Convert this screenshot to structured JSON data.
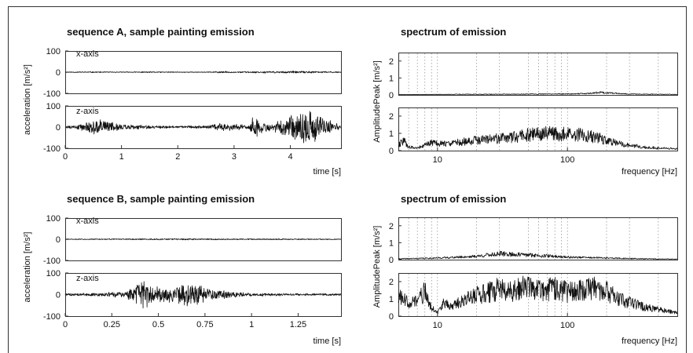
{
  "chart_data": [
    {
      "type": "line",
      "panel": "sequence-A-time",
      "title": "sequence A, sample painting emission",
      "xlabel": "time [s]",
      "ylabel": "acceleration [m/s²]",
      "xlim": [
        0,
        4.9
      ],
      "x_ticks": [
        0,
        1,
        2,
        3,
        4
      ],
      "x_tick_labels": [
        "0",
        "1",
        "2",
        "3",
        "4"
      ],
      "series": [
        {
          "name": "x-axis",
          "ylim": [
            -100,
            100
          ],
          "y_ticks": [
            100,
            0,
            -100
          ],
          "y_tick_labels": [
            "100",
            "0",
            "-100"
          ],
          "envelope": [
            [
              0,
              2
            ],
            [
              0.4,
              3
            ],
            [
              1.0,
              2
            ],
            [
              1.5,
              3
            ],
            [
              2.0,
              2
            ],
            [
              2.5,
              2
            ],
            [
              2.8,
              5
            ],
            [
              3.0,
              3
            ],
            [
              3.3,
              4
            ],
            [
              3.8,
              5
            ],
            [
              4.1,
              6
            ],
            [
              4.4,
              5
            ],
            [
              4.6,
              4
            ],
            [
              4.9,
              3
            ]
          ]
        },
        {
          "name": "z-axis",
          "ylim": [
            -100,
            100
          ],
          "y_ticks": [
            100,
            0,
            -100
          ],
          "y_tick_labels": [
            "100",
            "0",
            "-100"
          ],
          "envelope": [
            [
              0,
              6
            ],
            [
              0.2,
              10
            ],
            [
              0.35,
              25
            ],
            [
              0.6,
              40
            ],
            [
              0.9,
              20
            ],
            [
              1.1,
              12
            ],
            [
              1.5,
              8
            ],
            [
              2.0,
              6
            ],
            [
              2.5,
              8
            ],
            [
              2.8,
              20
            ],
            [
              3.1,
              15
            ],
            [
              3.25,
              10
            ],
            [
              3.35,
              60
            ],
            [
              3.5,
              30
            ],
            [
              3.65,
              20
            ],
            [
              3.8,
              40
            ],
            [
              4.0,
              55
            ],
            [
              4.3,
              95
            ],
            [
              4.6,
              50
            ],
            [
              4.8,
              20
            ],
            [
              4.9,
              10
            ]
          ]
        }
      ]
    },
    {
      "type": "line",
      "panel": "sequence-A-spectrum",
      "title": "spectrum of emission",
      "xlabel": "frequency [Hz]",
      "ylabel": "AmplitudePeak [m/s²]",
      "xscale": "log",
      "xlim": [
        5,
        700
      ],
      "x_ticks": [
        10,
        100
      ],
      "x_tick_labels": [
        "10",
        "100"
      ],
      "vertical_markers_hz": [
        6,
        7,
        8,
        9,
        10,
        20,
        30,
        50,
        60,
        70,
        80,
        90,
        100,
        200,
        300,
        500
      ],
      "series": [
        {
          "name": "x-axis",
          "ylim": [
            0,
            2.5
          ],
          "y_ticks": [
            0,
            1,
            2
          ],
          "y_tick_labels": [
            "0",
            "1",
            "2"
          ],
          "x": [
            5,
            10,
            15,
            30,
            60,
            100,
            140,
            180,
            300,
            700
          ],
          "y": [
            0.02,
            0.03,
            0.04,
            0.04,
            0.05,
            0.06,
            0.08,
            0.15,
            0.05,
            0.03
          ]
        },
        {
          "name": "z-axis",
          "ylim": [
            0,
            2.5
          ],
          "y_ticks": [
            0,
            1,
            2
          ],
          "y_tick_labels": [
            "0",
            "1",
            "2"
          ],
          "x": [
            5,
            5.5,
            6,
            7,
            8,
            9,
            10,
            12,
            15,
            20,
            25,
            30,
            40,
            50,
            60,
            70,
            80,
            100,
            130,
            160,
            200,
            250,
            300,
            400,
            500,
            700
          ],
          "y": [
            0.3,
            0.6,
            0.2,
            0.15,
            0.3,
            0.5,
            0.4,
            0.4,
            0.5,
            0.6,
            0.7,
            0.7,
            0.8,
            0.9,
            1.0,
            1.0,
            1.0,
            0.95,
            0.9,
            0.8,
            0.6,
            0.4,
            0.3,
            0.2,
            0.15,
            0.1
          ]
        }
      ]
    },
    {
      "type": "line",
      "panel": "sequence-B-time",
      "title": "sequence B, sample painting emission",
      "xlabel": "time [s]",
      "ylabel": "acceleration [m/s²]",
      "xlim": [
        0,
        1.48
      ],
      "x_ticks": [
        0,
        0.25,
        0.5,
        0.75,
        1,
        1.25
      ],
      "x_tick_labels": [
        "0",
        "0.25",
        "0.5",
        "0.75",
        "1",
        "1.25"
      ],
      "series": [
        {
          "name": "x-axis",
          "ylim": [
            -100,
            100
          ],
          "y_ticks": [
            100,
            0,
            -100
          ],
          "y_tick_labels": [
            "100",
            "0",
            "-100"
          ],
          "envelope": [
            [
              0,
              2
            ],
            [
              0.3,
              3
            ],
            [
              0.6,
              4
            ],
            [
              0.9,
              3
            ],
            [
              1.2,
              3
            ],
            [
              1.48,
              2
            ]
          ]
        },
        {
          "name": "z-axis",
          "ylim": [
            -100,
            100
          ],
          "y_ticks": [
            100,
            0,
            -100
          ],
          "y_tick_labels": [
            "100",
            "0",
            "-100"
          ],
          "envelope": [
            [
              0,
              6
            ],
            [
              0.15,
              8
            ],
            [
              0.3,
              15
            ],
            [
              0.38,
              40
            ],
            [
              0.42,
              85
            ],
            [
              0.45,
              50
            ],
            [
              0.55,
              35
            ],
            [
              0.65,
              70
            ],
            [
              0.72,
              50
            ],
            [
              0.8,
              25
            ],
            [
              0.9,
              15
            ],
            [
              1.0,
              8
            ],
            [
              1.2,
              6
            ],
            [
              1.48,
              5
            ]
          ]
        }
      ]
    },
    {
      "type": "line",
      "panel": "sequence-B-spectrum",
      "title": "spectrum of emission",
      "xlabel": "frequency [Hz]",
      "ylabel": "AmplitudePeak [m/s²]",
      "xscale": "log",
      "xlim": [
        5,
        700
      ],
      "x_ticks": [
        10,
        100
      ],
      "x_tick_labels": [
        "10",
        "100"
      ],
      "vertical_markers_hz": [
        6,
        7,
        8,
        9,
        10,
        20,
        30,
        50,
        60,
        70,
        80,
        90,
        100,
        200,
        300,
        500
      ],
      "series": [
        {
          "name": "x-axis",
          "ylim": [
            0,
            2.5
          ],
          "y_ticks": [
            0,
            1,
            2
          ],
          "y_tick_labels": [
            "0",
            "1",
            "2"
          ],
          "x": [
            5,
            8,
            10,
            15,
            20,
            30,
            40,
            60,
            100,
            150,
            250,
            400,
            700
          ],
          "y": [
            0.05,
            0.08,
            0.1,
            0.15,
            0.2,
            0.35,
            0.3,
            0.25,
            0.15,
            0.12,
            0.08,
            0.05,
            0.03
          ]
        },
        {
          "name": "z-axis",
          "ylim": [
            0,
            2.5
          ],
          "y_ticks": [
            0,
            1,
            2
          ],
          "y_tick_labels": [
            "0",
            "1",
            "2"
          ],
          "x": [
            5,
            6,
            7,
            8,
            9,
            10,
            11,
            13,
            15,
            18,
            20,
            25,
            30,
            35,
            40,
            50,
            60,
            80,
            100,
            130,
            160,
            200,
            250,
            300,
            400,
            500,
            700
          ],
          "y": [
            1.1,
            0.8,
            0.9,
            1.4,
            0.5,
            0.2,
            0.7,
            0.6,
            0.8,
            1.1,
            1.2,
            1.4,
            1.6,
            1.4,
            1.5,
            1.7,
            1.5,
            1.6,
            1.4,
            1.5,
            1.6,
            1.4,
            1.0,
            0.8,
            0.5,
            0.4,
            0.2
          ]
        }
      ]
    }
  ]
}
